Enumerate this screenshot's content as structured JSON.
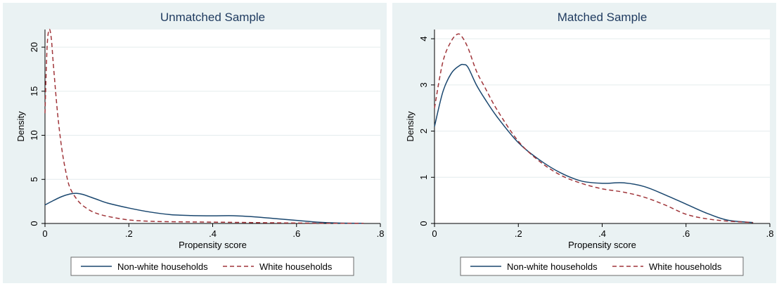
{
  "colors": {
    "panel_background": "#eaf2f3",
    "plot_background": "#ffffff",
    "grid": "#e4ecee",
    "title": "#1e3a5f",
    "series_nonwhite": "#1a476f",
    "series_white": "#a0353a"
  },
  "chart_data": [
    {
      "type": "line",
      "title": "Unmatched Sample",
      "xlabel": "Propensity score",
      "ylabel": "Density",
      "xlim": [
        0,
        0.8
      ],
      "ylim": [
        0,
        22
      ],
      "xticks": [
        0,
        0.2,
        0.4,
        0.6,
        0.8
      ],
      "xtick_labels": [
        "0",
        ".2",
        ".4",
        ".6",
        ".8"
      ],
      "yticks": [
        0,
        5,
        10,
        15,
        20
      ],
      "ytick_labels": [
        "0",
        "5",
        "10",
        "15",
        "20"
      ],
      "grid": true,
      "legend_position": "bottom",
      "series": [
        {
          "name": "Non-white households",
          "style": "solid",
          "x": [
            0,
            0.02,
            0.04,
            0.06,
            0.075,
            0.09,
            0.12,
            0.15,
            0.2,
            0.25,
            0.3,
            0.35,
            0.4,
            0.45,
            0.5,
            0.55,
            0.6,
            0.65,
            0.7,
            0.76
          ],
          "y": [
            2.1,
            2.6,
            3.05,
            3.35,
            3.42,
            3.3,
            2.8,
            2.3,
            1.75,
            1.3,
            1.0,
            0.9,
            0.87,
            0.88,
            0.75,
            0.55,
            0.35,
            0.15,
            0.05,
            0.02
          ]
        },
        {
          "name": "White households",
          "style": "dashed",
          "x": [
            0,
            0.005,
            0.01,
            0.015,
            0.02,
            0.03,
            0.04,
            0.05,
            0.06,
            0.08,
            0.1,
            0.12,
            0.15,
            0.2,
            0.25,
            0.3,
            0.4,
            0.5,
            0.6,
            0.7,
            0.76
          ],
          "y": [
            12.5,
            20,
            22,
            21,
            18,
            12.5,
            8.5,
            5.8,
            4,
            2.5,
            1.7,
            1.2,
            0.8,
            0.4,
            0.25,
            0.2,
            0.15,
            0.1,
            0.05,
            0.02,
            0.01
          ]
        }
      ]
    },
    {
      "type": "line",
      "title": "Matched Sample",
      "xlabel": "Propensity score",
      "ylabel": "Density",
      "xlim": [
        0,
        0.8
      ],
      "ylim": [
        0,
        4.2
      ],
      "xticks": [
        0,
        0.2,
        0.4,
        0.6,
        0.8
      ],
      "xtick_labels": [
        "0",
        ".2",
        ".4",
        ".6",
        ".8"
      ],
      "yticks": [
        0,
        1,
        2,
        3,
        4
      ],
      "ytick_labels": [
        "0",
        "1",
        "2",
        "3",
        "4"
      ],
      "grid": true,
      "legend_position": "bottom",
      "series": [
        {
          "name": "Non-white households",
          "style": "solid",
          "x": [
            0,
            0.02,
            0.04,
            0.06,
            0.07,
            0.08,
            0.1,
            0.12,
            0.15,
            0.2,
            0.25,
            0.3,
            0.35,
            0.4,
            0.45,
            0.5,
            0.55,
            0.6,
            0.65,
            0.7,
            0.76
          ],
          "y": [
            2.1,
            2.85,
            3.25,
            3.42,
            3.44,
            3.38,
            3.0,
            2.7,
            2.3,
            1.75,
            1.38,
            1.1,
            0.92,
            0.87,
            0.88,
            0.8,
            0.62,
            0.42,
            0.22,
            0.07,
            0.02
          ]
        },
        {
          "name": "White households",
          "style": "dashed",
          "x": [
            0,
            0.02,
            0.04,
            0.055,
            0.065,
            0.08,
            0.1,
            0.12,
            0.15,
            0.2,
            0.25,
            0.3,
            0.35,
            0.4,
            0.45,
            0.5,
            0.55,
            0.6,
            0.65,
            0.7,
            0.76
          ],
          "y": [
            2.5,
            3.5,
            3.95,
            4.1,
            4.05,
            3.8,
            3.3,
            2.95,
            2.45,
            1.78,
            1.35,
            1.05,
            0.87,
            0.75,
            0.68,
            0.57,
            0.4,
            0.2,
            0.1,
            0.05,
            0.02
          ]
        }
      ]
    }
  ]
}
